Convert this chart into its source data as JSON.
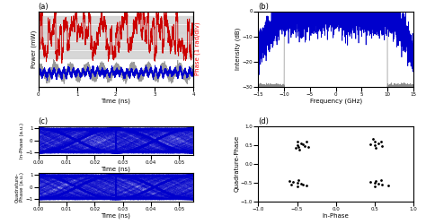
{
  "panel_a": {
    "title": "(a)",
    "xlabel": "Time (ns)",
    "ylabel_left": "Power (mW)",
    "ylabel_right": "Phase (1 rad/div)",
    "xlim": [
      0,
      4
    ],
    "phase_color": "#cc0000",
    "power_color": "#0000cc",
    "gray_color": "#888888"
  },
  "panel_b": {
    "title": "(b)",
    "xlabel": "Frequency (GHz)",
    "ylabel": "Intensity (dB)",
    "xlim": [
      -15,
      15
    ],
    "ylim": [
      -30,
      0
    ],
    "signal_color": "#0000cc",
    "ref_color": "#888888"
  },
  "panel_c": {
    "title": "(c)",
    "xlabel": "Time (ns)",
    "ylabel_top": "In-Phase (a.u.)",
    "ylabel_bot": "Quadrature-\nPhase (a.u.)",
    "xlim": [
      0,
      0.055
    ],
    "ylim": [
      -1.1,
      1.1
    ],
    "eye_color": "#0000cc"
  },
  "panel_d": {
    "title": "(d)",
    "xlabel": "In-Phase",
    "ylabel": "Quadrature-Phase",
    "xlim": [
      -1,
      1
    ],
    "ylim": [
      -1,
      1
    ],
    "dot_color": "#000000",
    "qpsk_points": [
      [
        -0.5,
        0.5
      ],
      [
        -0.45,
        0.55
      ],
      [
        -0.4,
        0.48
      ],
      [
        -0.5,
        0.6
      ],
      [
        -0.42,
        0.52
      ],
      [
        -0.48,
        0.45
      ],
      [
        -0.38,
        0.58
      ],
      [
        -0.52,
        0.42
      ],
      [
        -0.47,
        0.38
      ],
      [
        -0.35,
        0.44
      ],
      [
        0.5,
        0.5
      ],
      [
        0.55,
        0.55
      ],
      [
        0.45,
        0.52
      ],
      [
        0.5,
        0.6
      ],
      [
        0.6,
        0.48
      ],
      [
        0.52,
        0.42
      ],
      [
        0.58,
        0.58
      ],
      [
        0.48,
        0.65
      ],
      [
        -0.5,
        -0.5
      ],
      [
        -0.45,
        -0.52
      ],
      [
        -0.55,
        -0.48
      ],
      [
        -0.5,
        -0.6
      ],
      [
        -0.42,
        -0.55
      ],
      [
        -0.58,
        -0.55
      ],
      [
        -0.6,
        -0.45
      ],
      [
        -0.48,
        -0.42
      ],
      [
        -0.38,
        -0.58
      ],
      [
        0.5,
        -0.5
      ],
      [
        0.55,
        -0.52
      ],
      [
        0.45,
        -0.48
      ],
      [
        0.5,
        -0.6
      ],
      [
        0.6,
        -0.55
      ],
      [
        0.52,
        -0.45
      ],
      [
        0.68,
        -0.58
      ],
      [
        0.58,
        -0.42
      ]
    ]
  }
}
